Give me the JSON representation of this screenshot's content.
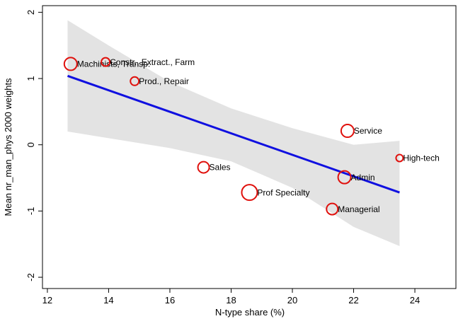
{
  "chart_data": {
    "type": "scatter",
    "xlabel": "N-type share (%)",
    "ylabel": "Mean nr_man_phys 2000 weights",
    "categories": [
      "Machinists, Transp.",
      "Constr., Extract., Farm",
      "Prod., Repair",
      "Service",
      "High-tech",
      "Sales",
      "Admin",
      "Prof Specialty",
      "Managerial"
    ],
    "x": [
      12.76,
      13.9,
      14.85,
      21.8,
      23.5,
      17.1,
      21.7,
      18.6,
      21.3
    ],
    "values": [
      1.22,
      1.25,
      0.96,
      0.21,
      -0.2,
      -0.34,
      -0.49,
      -0.72,
      -0.97
    ],
    "sizes": [
      9,
      6,
      6,
      9,
      5,
      8,
      9,
      11,
      8
    ],
    "color": "#e0100c",
    "fit": {
      "color": "#1010e0",
      "x": [
        12.66,
        23.5
      ],
      "values": [
        1.04,
        -0.72
      ]
    },
    "band": {
      "color": "#e3e3e3",
      "x": [
        12.66,
        14,
        16,
        18,
        20,
        22,
        23.5
      ],
      "upper": [
        1.88,
        1.5,
        0.95,
        0.55,
        0.25,
        0.0,
        0.06
      ],
      "lower": [
        0.2,
        0.1,
        -0.05,
        -0.25,
        -0.65,
        -1.24,
        -1.53
      ]
    },
    "xlim": [
      11.84,
      25.34
    ],
    "ylim": [
      -2.17,
      2.1
    ],
    "xticks": [
      12,
      14,
      16,
      18,
      20,
      22,
      24
    ],
    "yticks": [
      -2,
      -1,
      0,
      1,
      2
    ]
  }
}
